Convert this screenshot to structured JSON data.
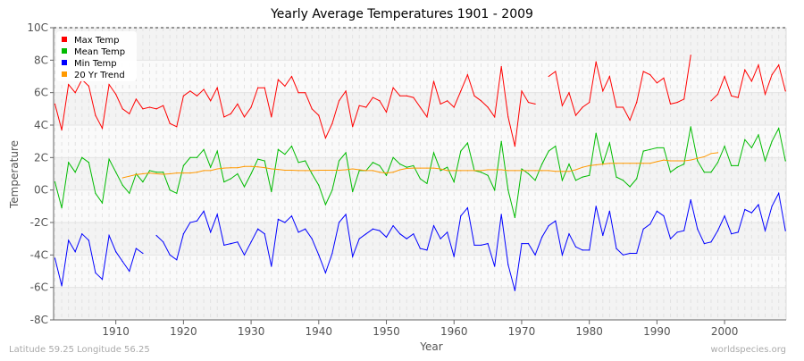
{
  "chart_data": {
    "type": "line",
    "title": "Yearly Average Temperatures 1901 - 2009",
    "xlabel": "Year",
    "ylabel": "Temperature",
    "xlim": [
      1901,
      2009
    ],
    "ylim": [
      -8,
      10
    ],
    "y_ticks": [
      "-8C",
      "-6C",
      "-4C",
      "-2C",
      "0C",
      "2C",
      "4C",
      "6C",
      "8C",
      "10C"
    ],
    "y_tick_values": [
      -8,
      -6,
      -4,
      -2,
      0,
      2,
      4,
      6,
      8,
      10
    ],
    "x_ticks": [
      1910,
      1920,
      1930,
      1940,
      1950,
      1960,
      1970,
      1980,
      1990,
      2000
    ],
    "grid": true,
    "legend_position": "top-left",
    "x": [
      1901,
      1902,
      1903,
      1904,
      1905,
      1906,
      1907,
      1908,
      1909,
      1910,
      1911,
      1912,
      1913,
      1914,
      1915,
      1916,
      1917,
      1918,
      1919,
      1920,
      1921,
      1922,
      1923,
      1924,
      1925,
      1926,
      1927,
      1928,
      1929,
      1930,
      1931,
      1932,
      1933,
      1934,
      1935,
      1936,
      1937,
      1938,
      1939,
      1940,
      1941,
      1942,
      1943,
      1944,
      1945,
      1946,
      1947,
      1948,
      1949,
      1950,
      1951,
      1952,
      1953,
      1954,
      1955,
      1956,
      1957,
      1958,
      1959,
      1960,
      1961,
      1962,
      1963,
      1964,
      1965,
      1966,
      1967,
      1968,
      1969,
      1970,
      1971,
      1972,
      1973,
      1974,
      1975,
      1976,
      1977,
      1978,
      1979,
      1980,
      1981,
      1982,
      1983,
      1984,
      1985,
      1986,
      1987,
      1988,
      1989,
      1990,
      1991,
      1992,
      1993,
      1994,
      1995,
      1996,
      1997,
      1998,
      1999,
      2000,
      2001,
      2002,
      2003,
      2004,
      2005,
      2006,
      2007,
      2008,
      2009
    ],
    "series": [
      {
        "name": "Max Temp",
        "color": "#ff0000",
        "values": [
          5.3,
          3.7,
          6.5,
          6.0,
          6.8,
          6.4,
          4.6,
          3.8,
          6.5,
          5.9,
          5.0,
          4.7,
          5.6,
          5.0,
          5.1,
          5.0,
          5.2,
          4.1,
          3.9,
          5.8,
          6.1,
          5.8,
          6.2,
          5.5,
          6.3,
          4.5,
          4.7,
          5.3,
          4.5,
          5.1,
          6.3,
          6.3,
          4.5,
          6.8,
          6.4,
          7.0,
          6.0,
          6.0,
          5.0,
          4.6,
          3.2,
          4.1,
          5.5,
          6.1,
          3.9,
          5.2,
          5.1,
          5.7,
          5.5,
          4.8,
          6.3,
          5.8,
          5.8,
          5.7,
          5.1,
          4.5,
          6.7,
          5.3,
          5.5,
          5.1,
          6.1,
          7.1,
          5.8,
          5.5,
          5.1,
          4.5,
          7.6,
          4.5,
          2.7,
          6.1,
          5.4,
          5.3,
          null,
          7.0,
          7.3,
          5.2,
          6.0,
          4.6,
          5.1,
          5.4,
          7.9,
          6.1,
          7.0,
          5.1,
          5.1,
          4.3,
          5.4,
          7.3,
          7.1,
          6.6,
          6.9,
          5.3,
          5.4,
          5.6,
          8.3,
          null,
          null,
          5.5,
          5.9,
          7.0,
          5.8,
          5.7,
          7.4,
          6.7,
          7.7,
          5.9,
          7.1,
          7.7,
          6.1
        ]
      },
      {
        "name": "Mean Temp",
        "color": "#00bb00",
        "values": [
          0.5,
          -1.1,
          1.7,
          1.1,
          2.0,
          1.7,
          -0.2,
          -0.8,
          1.9,
          1.1,
          0.3,
          -0.2,
          1.0,
          0.5,
          1.2,
          1.1,
          1.1,
          0.0,
          -0.2,
          1.5,
          2.0,
          2.0,
          2.5,
          1.4,
          2.4,
          0.5,
          0.7,
          1.0,
          0.2,
          1.0,
          1.9,
          1.8,
          -0.1,
          2.5,
          2.2,
          2.7,
          1.7,
          1.8,
          1.0,
          0.3,
          -0.9,
          0.0,
          1.8,
          2.3,
          -0.1,
          1.2,
          1.2,
          1.7,
          1.5,
          0.9,
          2.0,
          1.6,
          1.4,
          1.5,
          0.7,
          0.4,
          2.3,
          1.2,
          1.4,
          0.5,
          2.4,
          2.9,
          1.2,
          1.1,
          0.9,
          0.0,
          3.0,
          0.0,
          -1.7,
          1.3,
          1.0,
          0.6,
          1.6,
          2.4,
          2.7,
          0.6,
          1.6,
          0.6,
          0.8,
          0.9,
          3.5,
          1.6,
          2.9,
          0.8,
          0.6,
          0.2,
          0.7,
          2.4,
          2.5,
          2.6,
          2.6,
          1.1,
          1.4,
          1.6,
          3.9,
          1.8,
          1.1,
          1.1,
          1.7,
          2.7,
          1.5,
          1.5,
          3.1,
          2.6,
          3.4,
          1.8,
          3.0,
          3.8,
          1.8
        ]
      },
      {
        "name": "Min Temp",
        "color": "#0000ff",
        "values": [
          -4.2,
          -5.9,
          -3.1,
          -3.8,
          -2.7,
          -3.1,
          -5.1,
          -5.5,
          -2.8,
          -3.8,
          -4.4,
          -5.0,
          -3.6,
          -3.9,
          null,
          -2.8,
          -3.2,
          -4.0,
          -4.3,
          -2.7,
          -2.0,
          -1.9,
          -1.3,
          -2.6,
          -1.5,
          -3.4,
          -3.3,
          -3.2,
          -4.0,
          -3.2,
          -2.4,
          -2.7,
          -4.7,
          -1.8,
          -2.0,
          -1.6,
          -2.6,
          -2.4,
          -3.0,
          -4.0,
          -5.1,
          -3.9,
          -2.0,
          -1.5,
          -4.1,
          -3.0,
          -2.7,
          -2.4,
          -2.5,
          -2.9,
          -2.2,
          -2.7,
          -3.0,
          -2.7,
          -3.6,
          -3.7,
          -2.2,
          -3.0,
          -2.6,
          -4.1,
          -1.6,
          -1.1,
          -3.4,
          -3.4,
          -3.3,
          -4.7,
          -1.5,
          -4.6,
          -6.2,
          -3.3,
          -3.3,
          -4.0,
          -2.9,
          -2.2,
          -1.9,
          -4.0,
          -2.7,
          -3.5,
          -3.7,
          -3.7,
          -1.0,
          -2.8,
          -1.3,
          -3.6,
          -4.0,
          -3.9,
          -3.9,
          -2.4,
          -2.1,
          -1.3,
          -1.6,
          -3.0,
          -2.6,
          -2.5,
          -0.6,
          -2.4,
          -3.3,
          -3.2,
          -2.5,
          -1.6,
          -2.7,
          -2.6,
          -1.2,
          -1.4,
          -0.9,
          -2.5,
          -1.0,
          -0.2,
          -2.5
        ]
      },
      {
        "name": "20 Yr Trend",
        "color": "#ff9900",
        "values": [
          null,
          null,
          null,
          null,
          null,
          null,
          null,
          null,
          null,
          null,
          0.75,
          0.85,
          0.95,
          1.0,
          1.05,
          1.0,
          0.97,
          1.0,
          1.05,
          1.05,
          1.05,
          1.1,
          1.2,
          1.2,
          1.3,
          1.35,
          1.37,
          1.37,
          1.45,
          1.45,
          1.43,
          1.38,
          1.3,
          1.27,
          1.22,
          1.22,
          1.2,
          1.2,
          1.2,
          1.22,
          1.22,
          1.22,
          1.22,
          1.25,
          1.3,
          1.25,
          1.2,
          1.2,
          1.1,
          1.05,
          1.1,
          1.25,
          1.33,
          1.35,
          1.35,
          1.35,
          1.35,
          1.3,
          1.2,
          1.2,
          1.2,
          1.2,
          1.2,
          1.2,
          1.25,
          1.25,
          1.25,
          1.2,
          1.2,
          1.2,
          1.2,
          1.2,
          1.2,
          1.2,
          1.15,
          1.15,
          1.15,
          1.25,
          1.4,
          1.5,
          1.55,
          1.6,
          1.65,
          1.65,
          1.65,
          1.65,
          1.65,
          1.65,
          1.65,
          1.75,
          1.85,
          1.8,
          1.8,
          1.8,
          1.85,
          1.95,
          2.05,
          2.25,
          2.3,
          null,
          null,
          null,
          null,
          null,
          null,
          null,
          null,
          null,
          null
        ]
      }
    ]
  },
  "footer": {
    "location": "Latitude 59.25 Longitude 56.25",
    "source": "worldspecies.org"
  }
}
